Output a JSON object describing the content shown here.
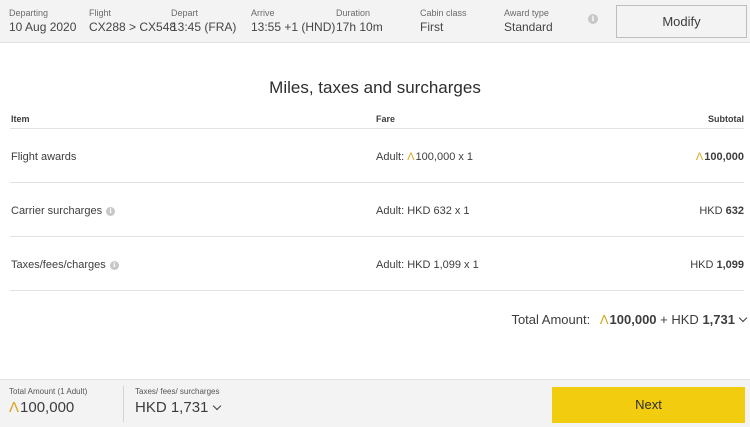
{
  "header": {
    "fields": [
      {
        "label": "Departing",
        "value": "10 Aug 2020"
      },
      {
        "label": "Flight",
        "value": "CX288 > CX548"
      },
      {
        "label": "Depart",
        "value": "13:45 (FRA)"
      },
      {
        "label": "Arrive",
        "value": "13:55 +1 (HND)"
      },
      {
        "label": "Duration",
        "value": "17h 10m"
      },
      {
        "label": "Cabin class",
        "value": "First"
      },
      {
        "label": "Award type",
        "value": "Standard"
      }
    ],
    "info_glyph": "i",
    "modify_label": "Modify"
  },
  "section": {
    "title": "Miles, taxes and surcharges",
    "columns": {
      "item": "Item",
      "fare": "Fare",
      "subtotal": "Subtotal"
    },
    "rows": [
      {
        "item": "Flight awards",
        "fare_prefix": "Adult: ",
        "fare_value": "100,000 x 1",
        "subtotal": "100,000",
        "miles": true,
        "info": false
      },
      {
        "item": "Carrier surcharges",
        "fare_prefix": "Adult: ",
        "fare_value": "HKD 632 x 1",
        "subtotal_currency": "HKD ",
        "subtotal": "632",
        "miles": false,
        "info": true
      },
      {
        "item": "Taxes/fees/charges",
        "fare_prefix": "Adult: ",
        "fare_value": "HKD 1,099 x 1",
        "subtotal_currency": "HKD ",
        "subtotal": "1,099",
        "miles": false,
        "info": true
      }
    ],
    "total": {
      "label": "Total Amount:",
      "miles": "100,000",
      "plus": "+ HKD",
      "cash": "1,731"
    }
  },
  "footer": {
    "total_label": "Total Amount (1 Adult)",
    "total_miles": "100,000",
    "taxes_label": "Taxes/ fees/ surcharges",
    "taxes_value": "HKD 1,731",
    "next_label": "Next"
  },
  "miles_symbol": "Λ",
  "colors": {
    "accent": "#f2cc0f",
    "miles_icon": "#d6a61c",
    "bar_bg": "#f3f3f3"
  }
}
